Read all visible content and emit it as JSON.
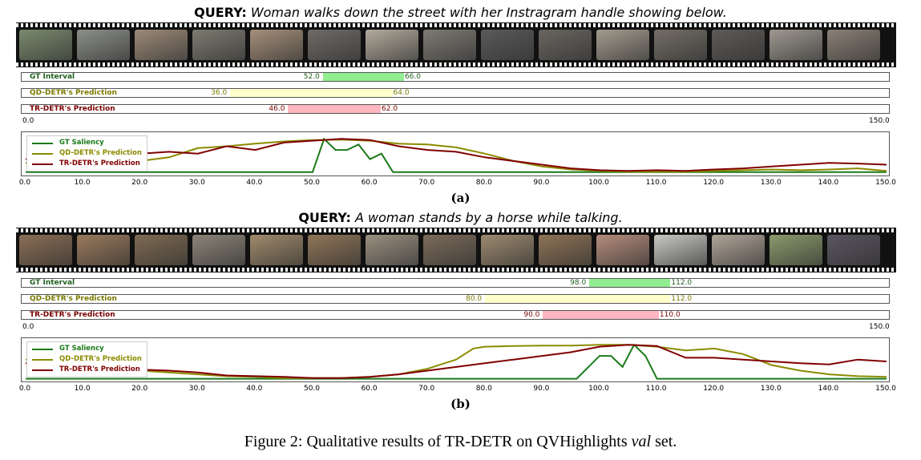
{
  "panels": [
    {
      "id": "a",
      "query_prefix": "QUERY:",
      "query_text": "Woman walks down the street with her Instragram handle showing below.",
      "frame_colors": [
        "#7a8a6e",
        "#8c8f88",
        "#9c8a78",
        "#7d7a70",
        "#a58f7a",
        "#6f6a66",
        "#b2aa9c",
        "#7f7a74",
        "#5a5a5a",
        "#6a6560",
        "#a39b8e",
        "#736d66",
        "#5e5a57",
        "#9e9890",
        "#8a8076"
      ],
      "rows": [
        {
          "label": "GT Interval",
          "start": "52.0",
          "end": "66.0",
          "s": 52,
          "e": 66,
          "color": "#90ee90",
          "text_color": "#1f5f1f"
        },
        {
          "label": "QD-DETR's Prediction",
          "start": "36.0",
          "end": "64.0",
          "s": 36,
          "e": 64,
          "color": "#ffffcc",
          "text_color": "#7a7a00"
        },
        {
          "label": "TR-DETR's Prediction",
          "start": "46.0",
          "end": "62.0",
          "s": 46,
          "e": 62,
          "color": "#ffb6c1",
          "text_color": "#7a0000"
        }
      ],
      "axis_min_label": "0.0",
      "axis_max_label": "150.0",
      "sub_label": "(a)"
    },
    {
      "id": "b",
      "query_prefix": "QUERY:",
      "query_text": "A woman stands by a horse while talking.",
      "frame_colors": [
        "#8a6e55",
        "#9a7a5c",
        "#7e6a52",
        "#8c8478",
        "#a08a6c",
        "#8f7558",
        "#9a8f80",
        "#7b6b5a",
        "#9d8a70",
        "#8e7356",
        "#b48c7c",
        "#c8c8c4",
        "#b0a498",
        "#8a9a6c",
        "#5a5560"
      ],
      "rows": [
        {
          "label": "GT Interval",
          "start": "98.0",
          "end": "112.0",
          "s": 98,
          "e": 112,
          "color": "#90ee90",
          "text_color": "#1f5f1f"
        },
        {
          "label": "QD-DETR's Prediction",
          "start": "80.0",
          "end": "112.0",
          "s": 80,
          "e": 112,
          "color": "#ffffcc",
          "text_color": "#7a7a00"
        },
        {
          "label": "TR-DETR's Prediction",
          "start": "90.0",
          "end": "110.0",
          "s": 90,
          "e": 110,
          "color": "#ffb6c1",
          "text_color": "#7a0000"
        }
      ],
      "axis_min_label": "0.0",
      "axis_max_label": "150.0",
      "sub_label": "(b)"
    }
  ],
  "chart_data": [
    {
      "type": "line",
      "xlim": [
        0,
        150
      ],
      "ylim": [
        0,
        1
      ],
      "x_ticks": [
        "0.0",
        "10.0",
        "20.0",
        "30.0",
        "40.0",
        "50.0",
        "60.0",
        "70.0",
        "80.0",
        "90.0",
        "100.0",
        "110.0",
        "120.0",
        "130.0",
        "140.0",
        "150.0"
      ],
      "series": [
        {
          "name": "GT Saliency",
          "color": "#1a7a1a",
          "x": [
            0,
            50,
            52,
            54,
            56,
            58,
            60,
            62,
            64,
            66,
            150
          ],
          "y": [
            0.05,
            0.05,
            0.95,
            0.65,
            0.65,
            0.8,
            0.4,
            0.55,
            0.05,
            0.05,
            0.05
          ]
        },
        {
          "name": "QD-DETR's Prediction",
          "color": "#8b8b00",
          "x": [
            0,
            5,
            10,
            15,
            20,
            25,
            30,
            35,
            40,
            45,
            50,
            55,
            60,
            65,
            70,
            75,
            80,
            85,
            90,
            95,
            100,
            105,
            110,
            115,
            120,
            125,
            130,
            135,
            140,
            145,
            150
          ],
          "y": [
            0.3,
            0.22,
            0.25,
            0.32,
            0.35,
            0.45,
            0.7,
            0.75,
            0.82,
            0.88,
            0.92,
            0.93,
            0.9,
            0.82,
            0.8,
            0.72,
            0.55,
            0.35,
            0.2,
            0.12,
            0.08,
            0.06,
            0.06,
            0.06,
            0.08,
            0.1,
            0.12,
            0.1,
            0.12,
            0.15,
            0.08
          ]
        },
        {
          "name": "TR-DETR's Prediction",
          "color": "#800000",
          "x": [
            0,
            5,
            10,
            15,
            20,
            25,
            30,
            35,
            40,
            45,
            50,
            55,
            60,
            65,
            70,
            75,
            80,
            85,
            90,
            95,
            100,
            105,
            110,
            115,
            120,
            125,
            130,
            135,
            140,
            145,
            150
          ],
          "y": [
            0.4,
            0.45,
            0.5,
            0.55,
            0.55,
            0.6,
            0.55,
            0.75,
            0.65,
            0.85,
            0.9,
            0.95,
            0.92,
            0.75,
            0.65,
            0.6,
            0.45,
            0.35,
            0.25,
            0.15,
            0.1,
            0.08,
            0.1,
            0.08,
            0.12,
            0.15,
            0.2,
            0.25,
            0.3,
            0.28,
            0.25
          ]
        }
      ]
    },
    {
      "type": "line",
      "xlim": [
        0,
        150
      ],
      "ylim": [
        0,
        1
      ],
      "x_ticks": [
        "0.0",
        "10.0",
        "20.0",
        "30.0",
        "40.0",
        "50.0",
        "60.0",
        "70.0",
        "80.0",
        "90.0",
        "100.0",
        "110.0",
        "120.0",
        "130.0",
        "140.0",
        "150.0"
      ],
      "series": [
        {
          "name": "GT Saliency",
          "color": "#1a7a1a",
          "x": [
            0,
            96,
            100,
            102,
            104,
            106,
            108,
            110,
            150
          ],
          "y": [
            0.03,
            0.03,
            0.65,
            0.65,
            0.35,
            0.95,
            0.65,
            0.03,
            0.03
          ]
        },
        {
          "name": "QD-DETR's Prediction",
          "color": "#8b8b00",
          "x": [
            0,
            5,
            10,
            15,
            20,
            25,
            30,
            35,
            40,
            45,
            50,
            55,
            60,
            65,
            70,
            75,
            78,
            80,
            85,
            90,
            95,
            100,
            105,
            110,
            115,
            120,
            125,
            130,
            135,
            140,
            145,
            150
          ],
          "y": [
            0.55,
            0.5,
            0.4,
            0.3,
            0.25,
            0.2,
            0.15,
            0.1,
            0.08,
            0.05,
            0.05,
            0.05,
            0.08,
            0.15,
            0.3,
            0.55,
            0.85,
            0.9,
            0.92,
            0.93,
            0.93,
            0.95,
            0.95,
            0.9,
            0.8,
            0.85,
            0.7,
            0.4,
            0.25,
            0.15,
            0.1,
            0.08
          ]
        },
        {
          "name": "TR-DETR's Prediction",
          "color": "#800000",
          "x": [
            0,
            5,
            10,
            15,
            20,
            25,
            30,
            35,
            40,
            45,
            50,
            55,
            60,
            65,
            70,
            75,
            80,
            85,
            90,
            95,
            100,
            105,
            110,
            115,
            120,
            125,
            130,
            135,
            140,
            145,
            150
          ],
          "y": [
            0.45,
            0.4,
            0.35,
            0.3,
            0.28,
            0.25,
            0.2,
            0.12,
            0.1,
            0.08,
            0.05,
            0.05,
            0.08,
            0.15,
            0.25,
            0.35,
            0.45,
            0.55,
            0.65,
            0.75,
            0.9,
            0.95,
            0.92,
            0.6,
            0.6,
            0.55,
            0.5,
            0.45,
            0.42,
            0.55,
            0.5
          ]
        }
      ]
    }
  ],
  "caption": {
    "prefix": "Figure 2: Qualitative results of TR-DETR on QVHighlights ",
    "italic": "val",
    "suffix": " set."
  }
}
